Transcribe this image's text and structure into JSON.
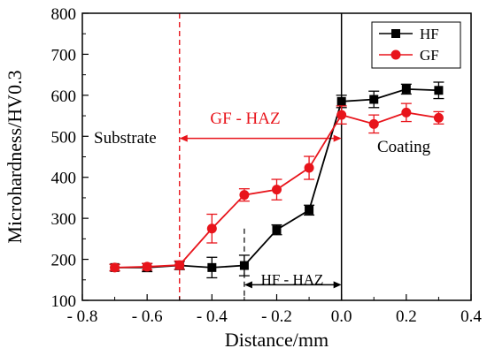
{
  "chart_data": {
    "type": "line",
    "xlabel": "Distance/mm",
    "ylabel": "Microhardness/HV0.3",
    "xlim": [
      -0.8,
      0.4
    ],
    "ylim": [
      100,
      800
    ],
    "xticks": [
      -0.8,
      -0.6,
      -0.4,
      -0.2,
      0.0,
      0.2,
      0.4
    ],
    "xtick_labels": [
      "- 0.8",
      "- 0.6",
      "- 0.4",
      "- 0.2",
      "0.0",
      "0.2",
      "0.4"
    ],
    "yticks": [
      100,
      200,
      300,
      400,
      500,
      600,
      700,
      800
    ],
    "ytick_labels": [
      "100",
      "200",
      "300",
      "400",
      "500",
      "600",
      "700",
      "800"
    ],
    "grid": false,
    "legend_position": "top-right",
    "series": [
      {
        "name": "HF",
        "color": "#000000",
        "marker": "square",
        "x": [
          -0.7,
          -0.6,
          -0.5,
          -0.4,
          -0.3,
          -0.2,
          -0.1,
          0.0,
          0.1,
          0.2,
          0.3
        ],
        "y": [
          180,
          180,
          185,
          180,
          185,
          272,
          320,
          585,
          590,
          615,
          612
        ],
        "err": [
          8,
          10,
          10,
          25,
          25,
          12,
          12,
          15,
          20,
          12,
          20
        ]
      },
      {
        "name": "GF",
        "color": "#e8141b",
        "marker": "circle",
        "x": [
          -0.7,
          -0.6,
          -0.5,
          -0.4,
          -0.3,
          -0.2,
          -0.1,
          0.0,
          0.1,
          0.2,
          0.3
        ],
        "y": [
          180,
          182,
          186,
          275,
          357,
          370,
          423,
          552,
          530,
          558,
          545
        ],
        "err": [
          8,
          8,
          10,
          35,
          15,
          25,
          28,
          22,
          22,
          22,
          15
        ]
      }
    ],
    "annotations": {
      "substrate": "Substrate",
      "coating": "Coating",
      "gf_haz": "GF - HAZ",
      "hf_haz": "HF - HAZ"
    }
  }
}
